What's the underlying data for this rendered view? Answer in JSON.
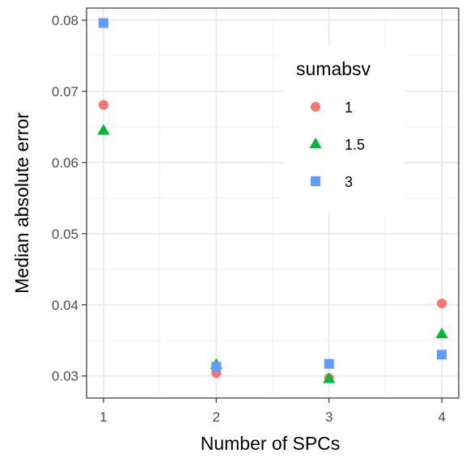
{
  "chart_data": {
    "type": "scatter",
    "xlabel": "Number of SPCs",
    "ylabel": "Median absolute error",
    "x_ticks": [
      1,
      2,
      3,
      4
    ],
    "x_tick_labels": [
      "1",
      "2",
      "3",
      "4"
    ],
    "y_ticks": [
      0.03,
      0.04,
      0.05,
      0.06,
      0.07,
      0.08
    ],
    "y_tick_labels": [
      "0.03",
      "0.04",
      "0.05",
      "0.06",
      "0.07",
      "0.08"
    ],
    "xlim": [
      0.85,
      4.15
    ],
    "ylim": [
      0.0269,
      0.0817
    ],
    "grid": true,
    "legend": {
      "title": "sumabsv",
      "position": "top-right (inside)"
    },
    "series": [
      {
        "name": "1",
        "color": "#F8766D",
        "shape": "circle",
        "x": [
          1,
          2,
          3,
          4
        ],
        "y": [
          0.0681,
          0.0304,
          0.0297,
          0.0402
        ]
      },
      {
        "name": "1.5",
        "color": "#00BA38",
        "shape": "triangle",
        "x": [
          1,
          2,
          3,
          4
        ],
        "y": [
          0.0645,
          0.0316,
          0.0296,
          0.0359
        ]
      },
      {
        "name": "3",
        "color": "#619CFF",
        "shape": "square",
        "x": [
          1,
          2,
          3,
          4
        ],
        "y": [
          0.0796,
          0.0313,
          0.0317,
          0.033
        ]
      }
    ]
  }
}
